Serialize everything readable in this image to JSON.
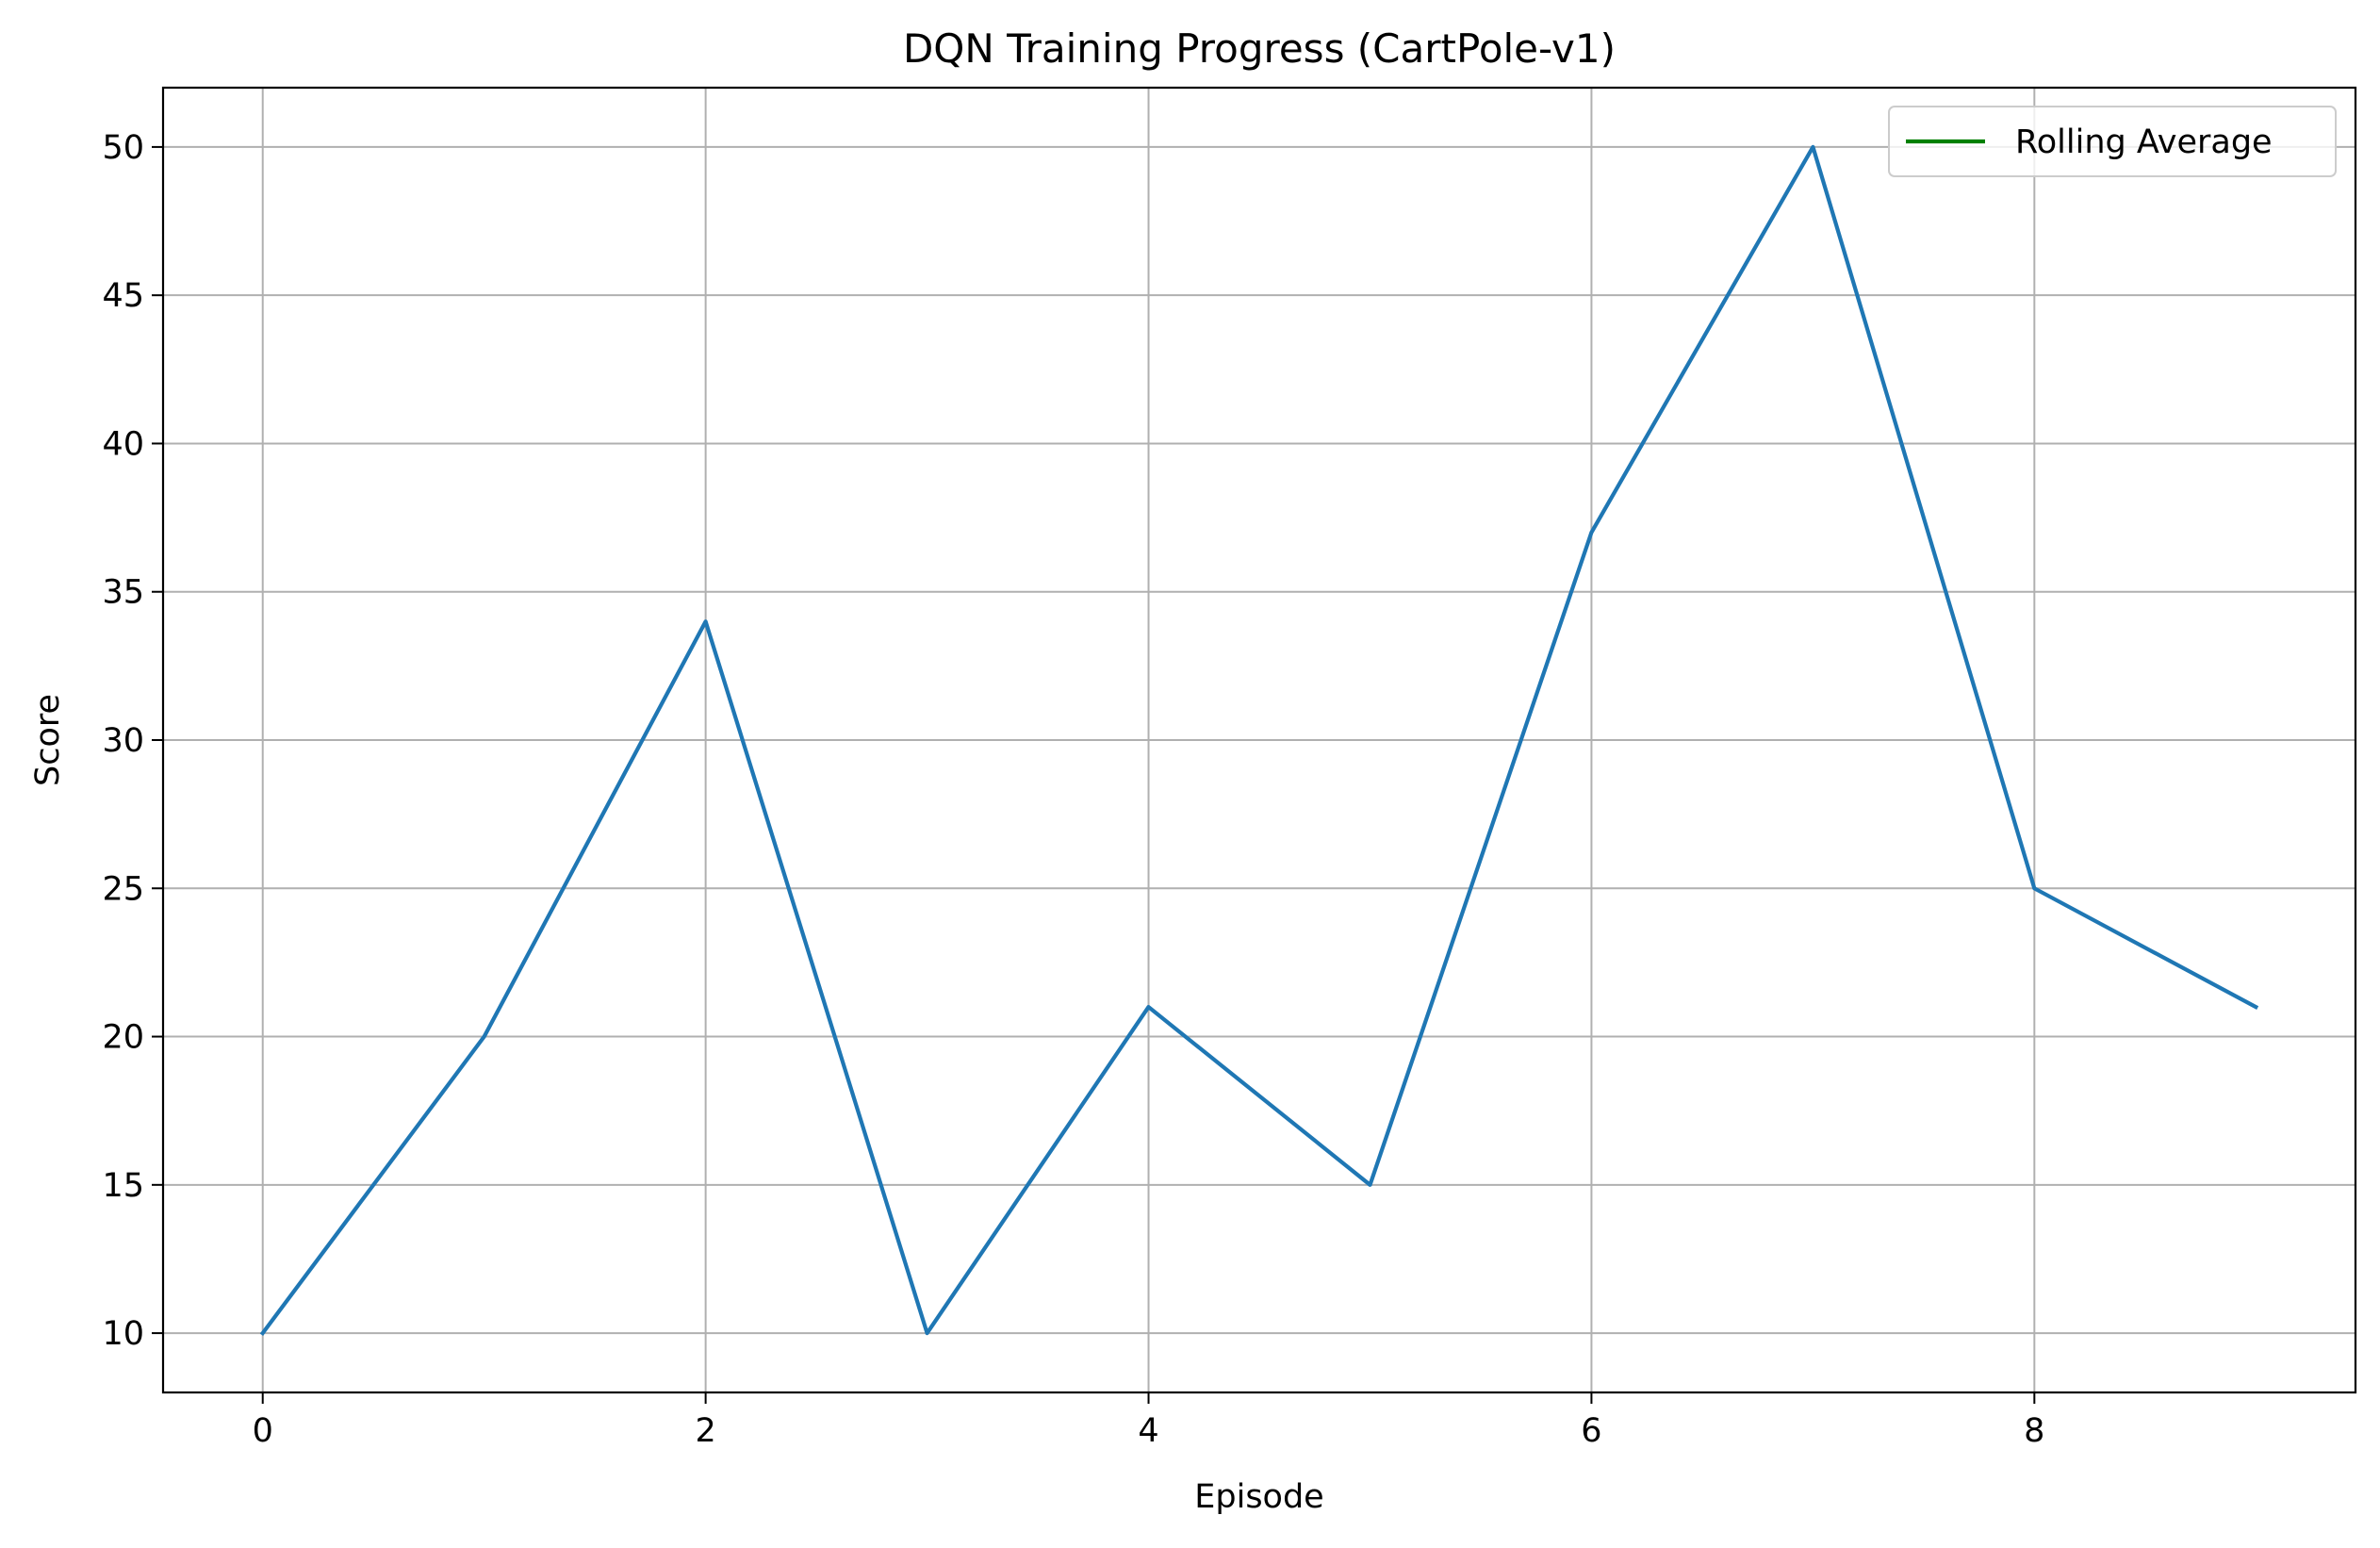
{
  "chart_data": {
    "type": "line",
    "title": "DQN Training Progress (CartPole-v1)",
    "xlabel": "Episode",
    "ylabel": "Score",
    "xlim": [
      -0.45,
      9.45
    ],
    "ylim": [
      8,
      52
    ],
    "xticks": [
      0,
      2,
      4,
      6,
      8
    ],
    "yticks": [
      10,
      15,
      20,
      25,
      30,
      35,
      40,
      45,
      50
    ],
    "xtick_labels": [
      "0",
      "2",
      "4",
      "6",
      "8"
    ],
    "ytick_labels": [
      "10",
      "15",
      "20",
      "25",
      "30",
      "35",
      "40",
      "45",
      "50"
    ],
    "grid": true,
    "legend_position": "upper-right",
    "legend": [
      {
        "label": "Rolling Average",
        "color": "#008000"
      }
    ],
    "series": [
      {
        "color": "#1f77b4",
        "x": [
          0,
          1,
          2,
          3,
          4,
          5,
          6,
          7,
          8,
          9
        ],
        "y": [
          10,
          20,
          34,
          10,
          21,
          15,
          37,
          50,
          25,
          21
        ]
      },
      {
        "name": "Rolling Average",
        "color": "#008000",
        "x": [],
        "y": []
      }
    ]
  }
}
